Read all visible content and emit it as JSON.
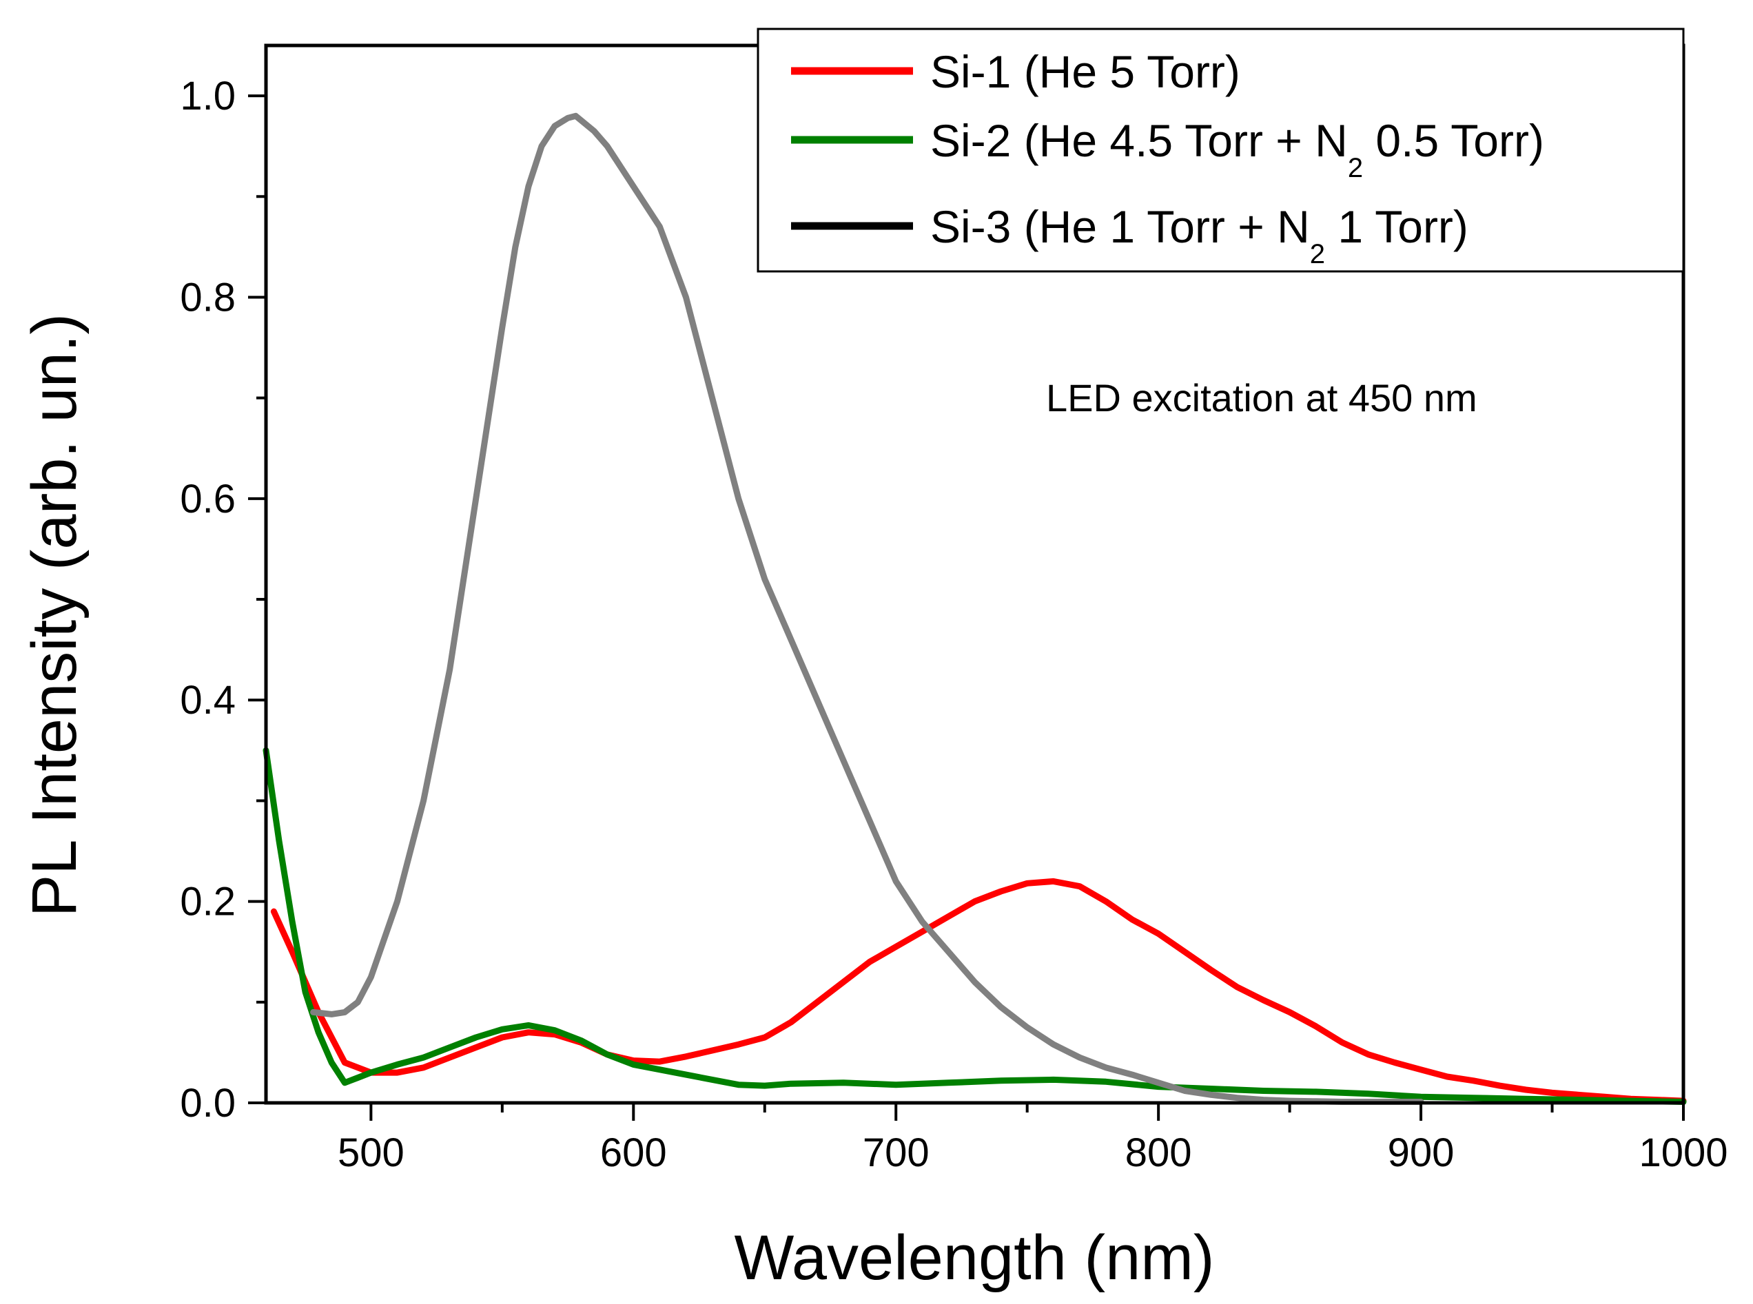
{
  "chart_data": {
    "type": "line",
    "title": "",
    "xlabel": "Wavelength (nm)",
    "ylabel": "PL Intensity (arb. un.)",
    "xlim": [
      460,
      1000
    ],
    "ylim": [
      0,
      1.05
    ],
    "xticks": [
      500,
      600,
      700,
      800,
      900,
      1000
    ],
    "xtick_labels": [
      "500",
      "600",
      "700",
      "800",
      "900",
      "1000"
    ],
    "yticks": [
      0.0,
      0.2,
      0.4,
      0.6,
      0.8,
      1.0
    ],
    "ytick_labels": [
      "0.0",
      "0.2",
      "0.4",
      "0.6",
      "0.8",
      "1.0"
    ],
    "grid": false,
    "legend_position": "top-right",
    "annotation": "LED excitation at 450 nm",
    "series": [
      {
        "name": "Si-1 (He 5 Torr)",
        "legend_main": "Si-1 (He 5 Torr)",
        "legend_sub": "",
        "legend_tail": "",
        "color": "#ff0000",
        "x": [
          463,
          470,
          480,
          490,
          500,
          510,
          520,
          530,
          540,
          550,
          560,
          570,
          580,
          590,
          600,
          610,
          620,
          630,
          640,
          650,
          660,
          670,
          680,
          690,
          700,
          710,
          720,
          730,
          740,
          750,
          760,
          770,
          780,
          790,
          800,
          810,
          820,
          830,
          840,
          850,
          860,
          870,
          880,
          890,
          900,
          910,
          920,
          930,
          940,
          950,
          960,
          970,
          980,
          990,
          1000
        ],
        "y": [
          0.19,
          0.15,
          0.09,
          0.04,
          0.03,
          0.03,
          0.035,
          0.045,
          0.055,
          0.065,
          0.07,
          0.068,
          0.06,
          0.048,
          0.042,
          0.041,
          0.046,
          0.052,
          0.058,
          0.065,
          0.08,
          0.1,
          0.12,
          0.14,
          0.155,
          0.17,
          0.185,
          0.2,
          0.21,
          0.218,
          0.22,
          0.215,
          0.2,
          0.182,
          0.168,
          0.15,
          0.132,
          0.115,
          0.102,
          0.09,
          0.076,
          0.06,
          0.048,
          0.04,
          0.033,
          0.026,
          0.022,
          0.017,
          0.013,
          0.01,
          0.008,
          0.006,
          0.004,
          0.003,
          0.002
        ]
      },
      {
        "name": "Si-2 (He 4.5 Torr + N2 0.5 Torr)",
        "legend_main": "Si-2 (He 4.5 Torr + N",
        "legend_sub": "2",
        "legend_tail": " 0.5 Torr)",
        "color": "#008000",
        "x": [
          460,
          465,
          470,
          475,
          480,
          485,
          490,
          495,
          500,
          510,
          520,
          530,
          540,
          550,
          560,
          570,
          580,
          590,
          600,
          620,
          640,
          650,
          660,
          680,
          700,
          720,
          740,
          760,
          780,
          800,
          820,
          840,
          860,
          880,
          900,
          920,
          940,
          960,
          980,
          1000
        ],
        "y": [
          0.35,
          0.26,
          0.18,
          0.11,
          0.07,
          0.04,
          0.02,
          0.025,
          0.03,
          0.038,
          0.045,
          0.055,
          0.065,
          0.073,
          0.077,
          0.072,
          0.062,
          0.048,
          0.038,
          0.028,
          0.018,
          0.017,
          0.019,
          0.02,
          0.018,
          0.02,
          0.022,
          0.023,
          0.021,
          0.016,
          0.014,
          0.012,
          0.011,
          0.009,
          0.006,
          0.005,
          0.004,
          0.003,
          0.002,
          0.001
        ]
      },
      {
        "name": "Si-3 (He 1 Torr + N2 1 Torr)",
        "legend_main": "Si-3 (He 1 Torr + N",
        "legend_sub": "2",
        "legend_tail": " 1 Torr)",
        "color": "#000000",
        "plot_color": "#808080",
        "x": [
          478,
          485,
          490,
          495,
          500,
          510,
          520,
          530,
          540,
          550,
          555,
          560,
          565,
          570,
          575,
          578,
          585,
          590,
          600,
          610,
          620,
          630,
          640,
          650,
          660,
          670,
          680,
          690,
          700,
          710,
          720,
          730,
          740,
          750,
          760,
          770,
          780,
          790,
          800,
          810,
          820,
          830,
          840,
          850,
          860,
          870,
          880,
          890,
          900
        ],
        "y": [
          0.09,
          0.088,
          0.09,
          0.1,
          0.125,
          0.2,
          0.3,
          0.43,
          0.6,
          0.77,
          0.85,
          0.91,
          0.95,
          0.97,
          0.978,
          0.98,
          0.965,
          0.95,
          0.91,
          0.87,
          0.8,
          0.7,
          0.6,
          0.52,
          0.46,
          0.4,
          0.34,
          0.28,
          0.22,
          0.18,
          0.15,
          0.12,
          0.095,
          0.075,
          0.058,
          0.045,
          0.035,
          0.028,
          0.02,
          0.012,
          0.008,
          0.005,
          0.003,
          0.002,
          0.0015,
          0.001,
          0.001,
          0.001,
          0.001
        ]
      }
    ]
  }
}
